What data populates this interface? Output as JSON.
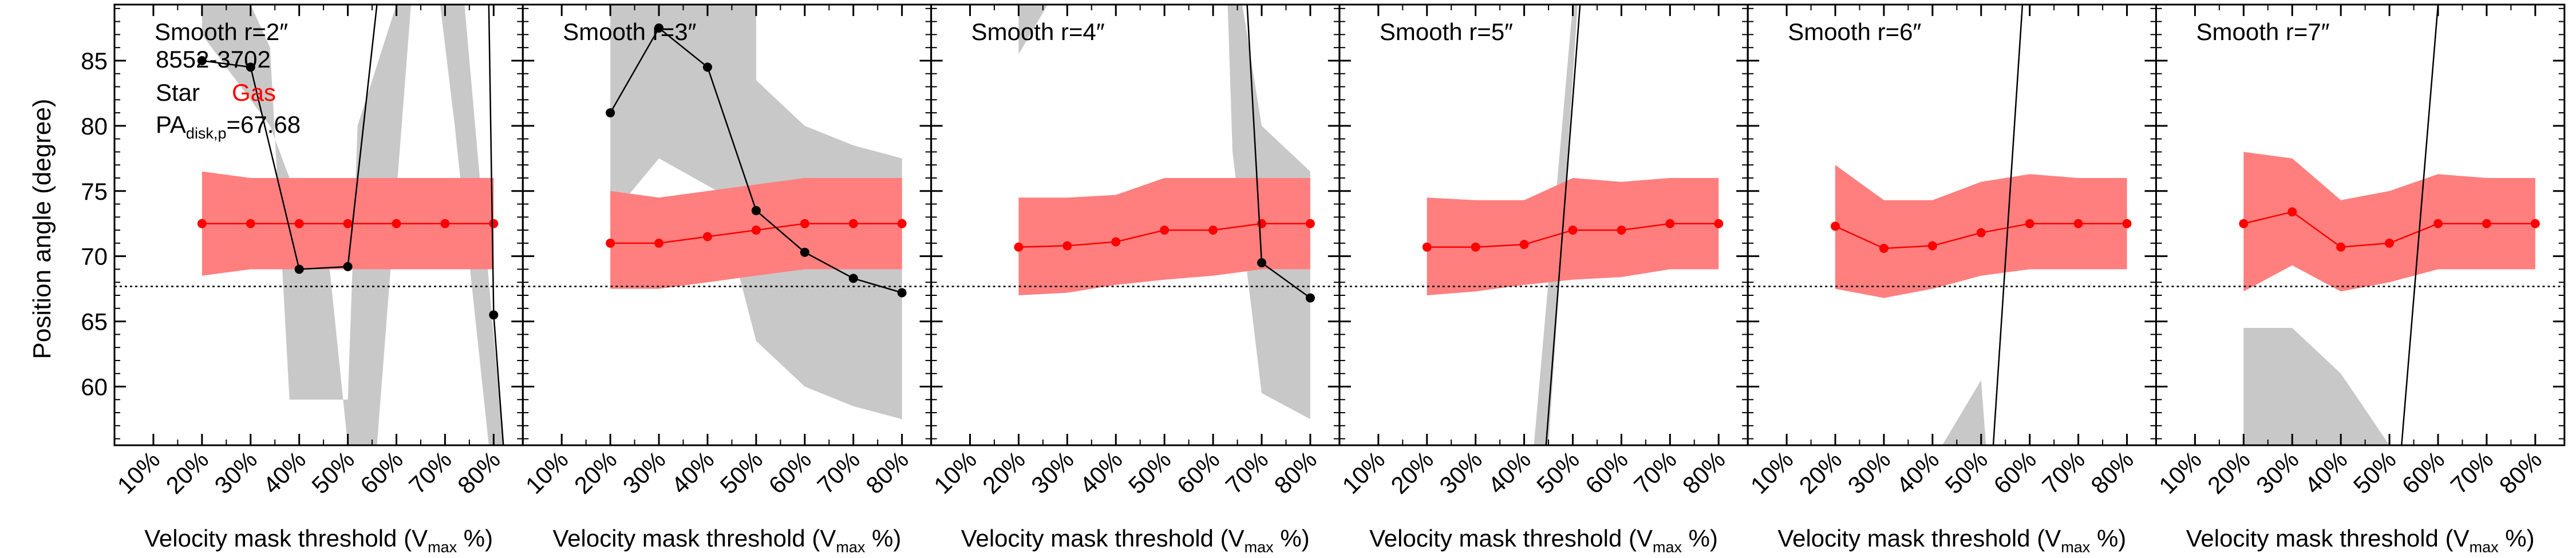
{
  "figure": {
    "ylabel": "Position angle (degree)",
    "info": {
      "plateifu": "8552-3702",
      "star_label": "Star",
      "gas_label": "Gas",
      "pa_prefix": "PA",
      "pa_sub": "disk,p",
      "pa_value": "=67.68"
    }
  },
  "colors": {
    "star_band": "#c8c8c8",
    "star_line": "#000000",
    "gas_band": "#ff7f7f",
    "gas_line": "#ff0000",
    "reference_line": "#000000",
    "frame": "#000000"
  },
  "chart_data": {
    "type": "line",
    "panel_count": 6,
    "ylim": [
      55.5,
      89.3
    ],
    "xlim": [
      0.02,
      0.86
    ],
    "yticks": [
      60,
      65,
      70,
      75,
      80,
      85
    ],
    "ytick_labels": [
      "60",
      "65",
      "70",
      "75",
      "80",
      "85"
    ],
    "xticks": [
      0.1,
      0.2,
      0.3,
      0.4,
      0.5,
      0.6,
      0.7,
      0.8
    ],
    "xtick_labels": [
      "10%",
      "20%",
      "30%",
      "40%",
      "50%",
      "60%",
      "70%",
      "80%"
    ],
    "reference_pa": 67.68,
    "xlabel_parts": {
      "pre": "Velocity mask threshold (V",
      "sub": "max",
      "post": " %)"
    },
    "panels": [
      {
        "title": "Smooth r=2″",
        "gas": {
          "x": [
            0.2,
            0.3,
            0.4,
            0.5,
            0.6,
            0.7,
            0.8
          ],
          "y": [
            72.5,
            72.5,
            72.5,
            72.5,
            72.5,
            72.5,
            72.5
          ],
          "lower": [
            68.5,
            69.0,
            69.0,
            69.0,
            69.0,
            69.0,
            69.0
          ],
          "upper": [
            76.5,
            76.0,
            76.0,
            76.0,
            76.0,
            76.0,
            76.0
          ]
        },
        "star": {
          "x": [
            0.2,
            0.3,
            0.4,
            0.5,
            0.8
          ],
          "y": [
            85.0,
            84.5,
            69.0,
            69.2,
            65.5
          ],
          "segments": [
            [
              [
                0.2,
                85.0
              ],
              [
                0.3,
                84.5
              ],
              [
                0.4,
                69.0
              ],
              [
                0.5,
                69.2
              ],
              [
                0.56,
                89.3
              ]
            ],
            [
              [
                0.79,
                89.3
              ],
              [
                0.8,
                65.5
              ],
              [
                0.82,
                55.5
              ]
            ]
          ],
          "bands": [
            [
              [
                0.2,
                89.3
              ],
              [
                0.3,
                89.3
              ],
              [
                0.34,
                86
              ],
              [
                0.38,
                59.0
              ],
              [
                0.5,
                59.0
              ],
              [
                0.52,
                80
              ],
              [
                0.6,
                89.3
              ],
              [
                0.63,
                89.3
              ],
              [
                0.56,
                55.5
              ],
              [
                0.5,
                55.5
              ],
              [
                0.46,
                70
              ],
              [
                0.4,
                74
              ],
              [
                0.34,
                80
              ],
              [
                0.22,
                86
              ],
              [
                0.2,
                87
              ]
            ],
            [
              [
                0.69,
                89.3
              ],
              [
                0.74,
                89.3
              ],
              [
                0.82,
                55.5
              ],
              [
                0.79,
                55.5
              ],
              [
                0.72,
                80
              ]
            ]
          ]
        }
      },
      {
        "title": "Smooth r=3″",
        "gas": {
          "x": [
            0.2,
            0.3,
            0.4,
            0.5,
            0.6,
            0.7,
            0.8
          ],
          "y": [
            71.0,
            71.0,
            71.5,
            72.0,
            72.5,
            72.5,
            72.5
          ],
          "lower": [
            67.5,
            67.5,
            68.0,
            68.5,
            69.0,
            69.0,
            69.0
          ],
          "upper": [
            75.0,
            74.5,
            75.0,
            75.5,
            76.0,
            76.0,
            76.0
          ]
        },
        "star": {
          "x": [
            0.2,
            0.3,
            0.4,
            0.5,
            0.6,
            0.7,
            0.8
          ],
          "y": [
            81.0,
            87.5,
            84.5,
            73.5,
            70.3,
            68.3,
            67.2
          ],
          "segments": [
            [
              [
                0.2,
                81.0
              ],
              [
                0.3,
                87.5
              ],
              [
                0.4,
                84.5
              ],
              [
                0.5,
                73.5
              ],
              [
                0.6,
                70.3
              ],
              [
                0.7,
                68.3
              ],
              [
                0.8,
                67.2
              ]
            ]
          ],
          "bands": [
            [
              [
                0.2,
                89.3
              ],
              [
                0.5,
                89.3
              ],
              [
                0.5,
                83.5
              ],
              [
                0.6,
                80.0
              ],
              [
                0.7,
                78.5
              ],
              [
                0.8,
                77.5
              ],
              [
                0.8,
                57.5
              ],
              [
                0.7,
                58.5
              ],
              [
                0.6,
                60.0
              ],
              [
                0.5,
                63.5
              ],
              [
                0.42,
                75.0
              ],
              [
                0.3,
                77.5
              ],
              [
                0.2,
                73.0
              ]
            ]
          ]
        }
      },
      {
        "title": "Smooth r=4″",
        "gas": {
          "x": [
            0.2,
            0.3,
            0.4,
            0.5,
            0.6,
            0.7,
            0.8
          ],
          "y": [
            70.7,
            70.8,
            71.1,
            72.0,
            72.0,
            72.5,
            72.5
          ],
          "lower": [
            67.0,
            67.2,
            67.8,
            68.2,
            68.5,
            69.0,
            69.0
          ],
          "upper": [
            74.5,
            74.5,
            74.7,
            76.0,
            76.0,
            76.0,
            76.0
          ]
        },
        "star": {
          "x": [
            0.7,
            0.8
          ],
          "y": [
            69.5,
            66.8
          ],
          "segments": [
            [
              [
                0.67,
                89.3
              ],
              [
                0.7,
                69.5
              ],
              [
                0.8,
                66.8
              ]
            ]
          ],
          "bands": [
            [
              [
                0.2,
                89.3
              ],
              [
                0.26,
                89.3
              ],
              [
                0.2,
                85.5
              ]
            ],
            [
              [
                0.63,
                89.3
              ],
              [
                0.66,
                89.3
              ],
              [
                0.7,
                80.0
              ],
              [
                0.8,
                76.5
              ],
              [
                0.8,
                57.5
              ],
              [
                0.7,
                59.5
              ],
              [
                0.64,
                78
              ]
            ]
          ]
        }
      },
      {
        "title": "Smooth r=5″",
        "gas": {
          "x": [
            0.2,
            0.3,
            0.4,
            0.5,
            0.6,
            0.7,
            0.8
          ],
          "y": [
            70.7,
            70.7,
            70.9,
            72.0,
            72.0,
            72.5,
            72.5
          ],
          "lower": [
            67.0,
            67.3,
            67.8,
            68.2,
            68.4,
            69.0,
            69.0
          ],
          "upper": [
            74.5,
            74.3,
            74.3,
            76.0,
            75.7,
            76.0,
            76.0
          ]
        },
        "star": {
          "x": [],
          "y": [],
          "segments": [
            [
              [
                0.445,
                55.5
              ],
              [
                0.515,
                89.3
              ]
            ]
          ],
          "bands": [
            [
              [
                0.42,
                55.5
              ],
              [
                0.5,
                89.3
              ],
              [
                0.51,
                89.3
              ],
              [
                0.45,
                55.5
              ]
            ]
          ]
        }
      },
      {
        "title": "Smooth r=6″",
        "gas": {
          "x": [
            0.2,
            0.3,
            0.4,
            0.5,
            0.6,
            0.7,
            0.8
          ],
          "y": [
            72.3,
            70.6,
            70.8,
            71.8,
            72.5,
            72.5,
            72.5
          ],
          "lower": [
            67.5,
            66.8,
            67.5,
            68.5,
            69.0,
            69.0,
            69.0
          ],
          "upper": [
            77.0,
            74.3,
            74.3,
            75.7,
            76.3,
            76.0,
            76.0
          ]
        },
        "star": {
          "x": [],
          "y": [],
          "segments": [
            [
              [
                0.525,
                55.5
              ],
              [
                0.585,
                89.3
              ]
            ]
          ],
          "bands": [
            [
              [
                0.42,
                55.5
              ],
              [
                0.5,
                60.5
              ],
              [
                0.51,
                55.5
              ]
            ]
          ]
        }
      },
      {
        "title": "Smooth r=7″",
        "gas": {
          "x": [
            0.2,
            0.3,
            0.4,
            0.5,
            0.6,
            0.7,
            0.8
          ],
          "y": [
            72.5,
            73.4,
            70.7,
            71.0,
            72.5,
            72.5,
            72.5
          ],
          "lower": [
            67.3,
            69.3,
            67.3,
            68.0,
            69.0,
            69.0,
            69.0
          ],
          "upper": [
            78.0,
            77.5,
            74.3,
            75.0,
            76.3,
            76.0,
            76.0
          ]
        },
        "star": {
          "x": [],
          "y": [],
          "segments": [
            [
              [
                0.525,
                55.5
              ],
              [
                0.6,
                89.3
              ]
            ]
          ],
          "bands": [
            [
              [
                0.2,
                64.5
              ],
              [
                0.3,
                64.5
              ],
              [
                0.4,
                61.0
              ],
              [
                0.5,
                55.5
              ],
              [
                0.2,
                55.5
              ]
            ]
          ]
        }
      }
    ]
  }
}
